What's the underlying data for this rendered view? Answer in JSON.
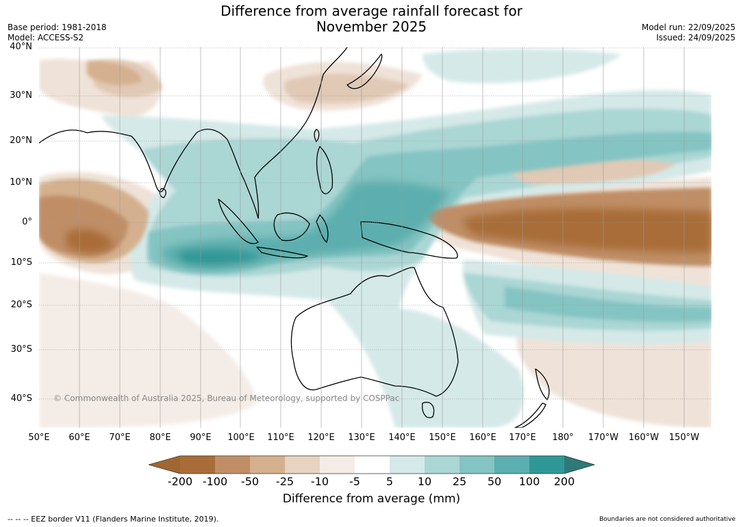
{
  "title": {
    "line1": "Difference from average rainfall forecast for",
    "line2": "November 2025"
  },
  "meta_left": {
    "base_period": "Base period: 1981-2018",
    "model": "Model: ACCESS-S2"
  },
  "meta_right": {
    "model_run": "Model run: 22/09/2025",
    "issued": "Issued: 24/09/2025"
  },
  "map": {
    "region": "Indo-Pacific, 50°E to 150°W, 46°S to 40°N",
    "lat_labels": [
      "40°N",
      "30°N",
      "20°N",
      "10°N",
      "0°",
      "10°S",
      "20°S",
      "30°S",
      "40°S"
    ],
    "lon_labels": [
      "50°E",
      "60°E",
      "70°E",
      "80°E",
      "90°E",
      "100°E",
      "110°E",
      "120°E",
      "130°E",
      "140°E",
      "150°E",
      "160°E",
      "170°E",
      "180°",
      "170°W",
      "160°W",
      "150°W"
    ],
    "copyright": "© Commonwealth of Australia 2025, Bureau of Meteorology, supported by COSPPac"
  },
  "colorbar": {
    "ticks": [
      "-200",
      "-100",
      "-50",
      "-25",
      "-10",
      "-5",
      "5",
      "10",
      "25",
      "50",
      "100",
      "200"
    ],
    "colors": [
      "#a0672f",
      "#a86d38",
      "#c08e66",
      "#d4b08e",
      "#e6d3c2",
      "#f4ece6",
      "#ffffff",
      "#d4e9e8",
      "#aad6d4",
      "#84c4c2",
      "#5bafae",
      "#2f9896",
      "#2d7a78"
    ],
    "label": "Difference from average (mm)"
  },
  "footer": {
    "left": "--  --  -- EEZ border V11 (Flanders Marine Institute, 2019).",
    "right": "Boundaries are not considered authoritative"
  }
}
